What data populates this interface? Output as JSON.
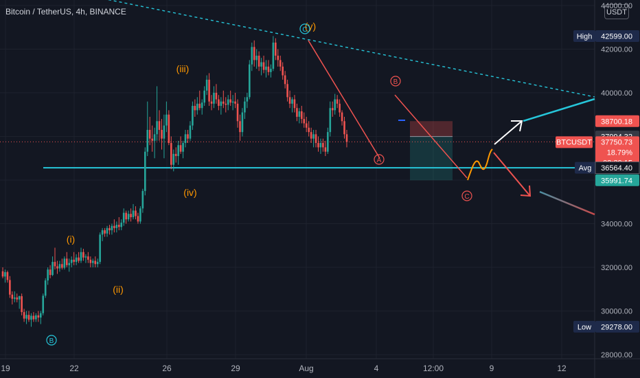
{
  "header": {
    "symbol_title": "Bitcoin / TetherUS, 4h, BINANCE",
    "currency": "USDT"
  },
  "colors": {
    "background": "#131722",
    "grid": "#1e222d",
    "up": "#26a69a",
    "down": "#ef5350",
    "orange": "#ff9800",
    "teal_line": "#26c6da",
    "white": "#ffffff",
    "dark_red": "#b71c1c",
    "axis_text": "#b2b5be",
    "label_navy": "#1e2a4a"
  },
  "chart_data": {
    "type": "candlestick",
    "title": "Bitcoin / TetherUS, 4h, BINANCE",
    "ylim": [
      28000,
      44000
    ],
    "x_ticks": [
      "19",
      "22",
      "26",
      "29",
      "Aug",
      "4",
      "12:00",
      "9",
      "12"
    ],
    "y_ticks": [
      "28000.00",
      "30000.00",
      "32000.00",
      "34000.00",
      "36000.00",
      "38000.00",
      "40000.00",
      "42000.00",
      "44000.00"
    ],
    "grid": true,
    "candles": [
      {
        "o": 31820,
        "h": 32000,
        "l": 31500,
        "c": 31580
      },
      {
        "o": 31580,
        "h": 31900,
        "l": 31300,
        "c": 31780
      },
      {
        "o": 31780,
        "h": 31850,
        "l": 31300,
        "c": 31420
      },
      {
        "o": 31420,
        "h": 31600,
        "l": 30600,
        "c": 30750
      },
      {
        "o": 30750,
        "h": 30900,
        "l": 30300,
        "c": 30560
      },
      {
        "o": 30560,
        "h": 30900,
        "l": 30400,
        "c": 30620
      },
      {
        "o": 30620,
        "h": 30800,
        "l": 30400,
        "c": 30530
      },
      {
        "o": 30530,
        "h": 30700,
        "l": 30100,
        "c": 30680
      },
      {
        "o": 30680,
        "h": 30800,
        "l": 29800,
        "c": 29950
      },
      {
        "o": 29950,
        "h": 30100,
        "l": 29500,
        "c": 29650
      },
      {
        "o": 29650,
        "h": 30000,
        "l": 29400,
        "c": 29820
      },
      {
        "o": 29820,
        "h": 30000,
        "l": 29500,
        "c": 29600
      },
      {
        "o": 29600,
        "h": 29900,
        "l": 29278,
        "c": 29780
      },
      {
        "o": 29780,
        "h": 29950,
        "l": 29500,
        "c": 29620
      },
      {
        "o": 29620,
        "h": 29900,
        "l": 29500,
        "c": 29800
      },
      {
        "o": 29800,
        "h": 30000,
        "l": 29500,
        "c": 29700
      },
      {
        "o": 29700,
        "h": 30000,
        "l": 29400,
        "c": 29900
      },
      {
        "o": 29900,
        "h": 30800,
        "l": 29800,
        "c": 30700
      },
      {
        "o": 30700,
        "h": 31500,
        "l": 30600,
        "c": 31400
      },
      {
        "o": 31400,
        "h": 32000,
        "l": 31200,
        "c": 31900
      },
      {
        "o": 31900,
        "h": 32100,
        "l": 31500,
        "c": 31650
      },
      {
        "o": 31650,
        "h": 32500,
        "l": 31600,
        "c": 32250
      },
      {
        "o": 32250,
        "h": 32900,
        "l": 31900,
        "c": 32050
      },
      {
        "o": 32050,
        "h": 32300,
        "l": 31700,
        "c": 31950
      },
      {
        "o": 31950,
        "h": 32300,
        "l": 31800,
        "c": 32150
      },
      {
        "o": 32150,
        "h": 32400,
        "l": 31900,
        "c": 31980
      },
      {
        "o": 31980,
        "h": 32500,
        "l": 31900,
        "c": 32400
      },
      {
        "o": 32400,
        "h": 32700,
        "l": 32000,
        "c": 32100
      },
      {
        "o": 32100,
        "h": 32400,
        "l": 31800,
        "c": 32200
      },
      {
        "o": 32200,
        "h": 32500,
        "l": 32000,
        "c": 32350
      },
      {
        "o": 32350,
        "h": 32700,
        "l": 32100,
        "c": 32250
      },
      {
        "o": 32250,
        "h": 32600,
        "l": 32100,
        "c": 32450
      },
      {
        "o": 32450,
        "h": 32700,
        "l": 32200,
        "c": 32300
      },
      {
        "o": 32300,
        "h": 32900,
        "l": 32200,
        "c": 32700
      },
      {
        "o": 32700,
        "h": 32850,
        "l": 32300,
        "c": 32450
      },
      {
        "o": 32450,
        "h": 32600,
        "l": 32200,
        "c": 32500
      },
      {
        "o": 32500,
        "h": 32700,
        "l": 32200,
        "c": 32350
      },
      {
        "o": 32350,
        "h": 32500,
        "l": 32000,
        "c": 32200
      },
      {
        "o": 32200,
        "h": 32400,
        "l": 32000,
        "c": 32300
      },
      {
        "o": 32300,
        "h": 32500,
        "l": 32000,
        "c": 32150
      },
      {
        "o": 32150,
        "h": 32400,
        "l": 32000,
        "c": 32250
      },
      {
        "o": 32250,
        "h": 33600,
        "l": 32150,
        "c": 33500
      },
      {
        "o": 33500,
        "h": 33800,
        "l": 33200,
        "c": 33700
      },
      {
        "o": 33700,
        "h": 33800,
        "l": 33400,
        "c": 33550
      },
      {
        "o": 33550,
        "h": 33900,
        "l": 33400,
        "c": 33800
      },
      {
        "o": 33800,
        "h": 33950,
        "l": 33500,
        "c": 33700
      },
      {
        "o": 33700,
        "h": 34000,
        "l": 33500,
        "c": 33900
      },
      {
        "o": 33900,
        "h": 34200,
        "l": 33600,
        "c": 33800
      },
      {
        "o": 33800,
        "h": 34100,
        "l": 33600,
        "c": 33950
      },
      {
        "o": 33950,
        "h": 34300,
        "l": 33700,
        "c": 33850
      },
      {
        "o": 33850,
        "h": 34200,
        "l": 33700,
        "c": 34050
      },
      {
        "o": 34050,
        "h": 34700,
        "l": 33900,
        "c": 34500
      },
      {
        "o": 34500,
        "h": 34600,
        "l": 34000,
        "c": 34200
      },
      {
        "o": 34200,
        "h": 34600,
        "l": 34100,
        "c": 34450
      },
      {
        "o": 34450,
        "h": 34700,
        "l": 34100,
        "c": 34300
      },
      {
        "o": 34300,
        "h": 34900,
        "l": 34200,
        "c": 34600
      },
      {
        "o": 34600,
        "h": 34800,
        "l": 34200,
        "c": 34350
      },
      {
        "o": 34350,
        "h": 34500,
        "l": 34000,
        "c": 34100
      },
      {
        "o": 34100,
        "h": 34800,
        "l": 34000,
        "c": 34700
      },
      {
        "o": 34700,
        "h": 35600,
        "l": 34500,
        "c": 35500
      },
      {
        "o": 35500,
        "h": 37500,
        "l": 35300,
        "c": 37300
      },
      {
        "o": 37300,
        "h": 39600,
        "l": 37100,
        "c": 38300
      },
      {
        "o": 38300,
        "h": 38900,
        "l": 37600,
        "c": 37900
      },
      {
        "o": 37900,
        "h": 38500,
        "l": 37300,
        "c": 37800
      },
      {
        "o": 37800,
        "h": 38400,
        "l": 37000,
        "c": 38100
      },
      {
        "o": 38100,
        "h": 40300,
        "l": 37800,
        "c": 38700
      },
      {
        "o": 38700,
        "h": 39200,
        "l": 37800,
        "c": 38300
      },
      {
        "o": 38300,
        "h": 38800,
        "l": 37400,
        "c": 37900
      },
      {
        "o": 37900,
        "h": 39000,
        "l": 37000,
        "c": 38500
      },
      {
        "o": 38500,
        "h": 39600,
        "l": 38200,
        "c": 39000
      },
      {
        "o": 39000,
        "h": 39200,
        "l": 37600,
        "c": 37700
      },
      {
        "o": 37700,
        "h": 38000,
        "l": 36500,
        "c": 36700
      },
      {
        "o": 36700,
        "h": 37400,
        "l": 36400,
        "c": 37200
      },
      {
        "o": 37200,
        "h": 37500,
        "l": 36800,
        "c": 37100
      },
      {
        "o": 37100,
        "h": 37800,
        "l": 36700,
        "c": 37600
      },
      {
        "o": 37600,
        "h": 38000,
        "l": 37200,
        "c": 37300
      },
      {
        "o": 37300,
        "h": 37800,
        "l": 37000,
        "c": 37700
      },
      {
        "o": 37700,
        "h": 38300,
        "l": 37500,
        "c": 38100
      },
      {
        "o": 38100,
        "h": 38300,
        "l": 37700,
        "c": 37900
      },
      {
        "o": 37900,
        "h": 38700,
        "l": 37800,
        "c": 38500
      },
      {
        "o": 38500,
        "h": 39600,
        "l": 38300,
        "c": 39400
      },
      {
        "o": 39400,
        "h": 39700,
        "l": 38900,
        "c": 39200
      },
      {
        "o": 39200,
        "h": 39800,
        "l": 39000,
        "c": 39500
      },
      {
        "o": 39500,
        "h": 40100,
        "l": 39200,
        "c": 39300
      },
      {
        "o": 39300,
        "h": 39700,
        "l": 39000,
        "c": 39550
      },
      {
        "o": 39550,
        "h": 40300,
        "l": 39400,
        "c": 40100
      },
      {
        "o": 40100,
        "h": 40800,
        "l": 39900,
        "c": 40600
      },
      {
        "o": 40600,
        "h": 40900,
        "l": 39400,
        "c": 39600
      },
      {
        "o": 39600,
        "h": 39900,
        "l": 39200,
        "c": 39500
      },
      {
        "o": 39500,
        "h": 40300,
        "l": 39300,
        "c": 40000
      },
      {
        "o": 40000,
        "h": 40400,
        "l": 39500,
        "c": 39700
      },
      {
        "o": 39700,
        "h": 39900,
        "l": 39200,
        "c": 39400
      },
      {
        "o": 39400,
        "h": 39800,
        "l": 39000,
        "c": 39600
      },
      {
        "o": 39600,
        "h": 40100,
        "l": 39300,
        "c": 39500
      },
      {
        "o": 39500,
        "h": 39800,
        "l": 39100,
        "c": 39450
      },
      {
        "o": 39450,
        "h": 39900,
        "l": 39200,
        "c": 39700
      },
      {
        "o": 39700,
        "h": 40100,
        "l": 39400,
        "c": 39550
      },
      {
        "o": 39550,
        "h": 39900,
        "l": 39200,
        "c": 39600
      },
      {
        "o": 39600,
        "h": 40000,
        "l": 39300,
        "c": 39500
      },
      {
        "o": 39500,
        "h": 39700,
        "l": 38400,
        "c": 38700
      },
      {
        "o": 38700,
        "h": 39000,
        "l": 37800,
        "c": 38200
      },
      {
        "o": 38200,
        "h": 39300,
        "l": 38000,
        "c": 39100
      },
      {
        "o": 39100,
        "h": 39800,
        "l": 38800,
        "c": 39600
      },
      {
        "o": 39600,
        "h": 40000,
        "l": 39300,
        "c": 39800
      },
      {
        "o": 39800,
        "h": 41500,
        "l": 39700,
        "c": 41300
      },
      {
        "o": 41300,
        "h": 42300,
        "l": 41000,
        "c": 42100
      },
      {
        "o": 42100,
        "h": 42400,
        "l": 41200,
        "c": 41500
      },
      {
        "o": 41500,
        "h": 42000,
        "l": 41100,
        "c": 41700
      },
      {
        "o": 41700,
        "h": 41900,
        "l": 41000,
        "c": 41200
      },
      {
        "o": 41200,
        "h": 41600,
        "l": 40800,
        "c": 41400
      },
      {
        "o": 41400,
        "h": 41700,
        "l": 40900,
        "c": 41050
      },
      {
        "o": 41050,
        "h": 41500,
        "l": 40700,
        "c": 41200
      },
      {
        "o": 41200,
        "h": 41500,
        "l": 40800,
        "c": 40950
      },
      {
        "o": 40950,
        "h": 41300,
        "l": 40700,
        "c": 41100
      },
      {
        "o": 41100,
        "h": 42599,
        "l": 41000,
        "c": 42300
      },
      {
        "o": 42300,
        "h": 42500,
        "l": 41500,
        "c": 41700
      },
      {
        "o": 41700,
        "h": 42000,
        "l": 41200,
        "c": 41500
      },
      {
        "o": 41500,
        "h": 41700,
        "l": 41000,
        "c": 41200
      },
      {
        "o": 41200,
        "h": 41400,
        "l": 40600,
        "c": 40800
      },
      {
        "o": 40800,
        "h": 41000,
        "l": 40200,
        "c": 40400
      },
      {
        "o": 40400,
        "h": 40600,
        "l": 39600,
        "c": 39800
      },
      {
        "o": 39800,
        "h": 40100,
        "l": 39300,
        "c": 39500
      },
      {
        "o": 39500,
        "h": 39800,
        "l": 39100,
        "c": 39700
      },
      {
        "o": 39700,
        "h": 39900,
        "l": 39100,
        "c": 39300
      },
      {
        "o": 39300,
        "h": 39500,
        "l": 38700,
        "c": 38900
      },
      {
        "o": 38900,
        "h": 39300,
        "l": 38600,
        "c": 39150
      },
      {
        "o": 39150,
        "h": 39400,
        "l": 38600,
        "c": 38800
      },
      {
        "o": 38800,
        "h": 39100,
        "l": 38400,
        "c": 38600
      },
      {
        "o": 38600,
        "h": 38900,
        "l": 38200,
        "c": 38400
      },
      {
        "o": 38400,
        "h": 38700,
        "l": 38000,
        "c": 38200
      },
      {
        "o": 38200,
        "h": 38400,
        "l": 37700,
        "c": 37900
      },
      {
        "o": 37900,
        "h": 38300,
        "l": 37500,
        "c": 38100
      },
      {
        "o": 38100,
        "h": 38300,
        "l": 37500,
        "c": 37700
      },
      {
        "o": 37700,
        "h": 38000,
        "l": 37300,
        "c": 37500
      },
      {
        "o": 37500,
        "h": 37900,
        "l": 37200,
        "c": 37700
      },
      {
        "o": 37700,
        "h": 37900,
        "l": 37300,
        "c": 37500
      },
      {
        "o": 37500,
        "h": 37800,
        "l": 37100,
        "c": 37300
      },
      {
        "o": 37300,
        "h": 38400,
        "l": 37200,
        "c": 38200
      },
      {
        "o": 38200,
        "h": 39600,
        "l": 38000,
        "c": 39300
      },
      {
        "o": 39300,
        "h": 39600,
        "l": 38900,
        "c": 39200
      },
      {
        "o": 39200,
        "h": 39950,
        "l": 39000,
        "c": 39700
      },
      {
        "o": 39700,
        "h": 39900,
        "l": 39300,
        "c": 39500
      },
      {
        "o": 39500,
        "h": 39700,
        "l": 38900,
        "c": 39100
      },
      {
        "o": 39100,
        "h": 39200,
        "l": 38500,
        "c": 38700
      },
      {
        "o": 38700,
        "h": 38900,
        "l": 37900,
        "c": 38100
      },
      {
        "o": 38100,
        "h": 38300,
        "l": 37500,
        "c": 37750
      }
    ],
    "price_labels": [
      {
        "id": "high",
        "label": "High",
        "value": "42599.00"
      },
      {
        "id": "target",
        "value": "38700.18"
      },
      {
        "id": "position",
        "value": "37994.32"
      },
      {
        "id": "symbol",
        "label": "BTCUSDT",
        "value": "37750.73",
        "change": "18.79%",
        "countdown": "02:39:15"
      },
      {
        "id": "avg",
        "label": "Avg",
        "value": "36564.40"
      },
      {
        "id": "stop",
        "value": "35991.74"
      },
      {
        "id": "low",
        "label": "Low",
        "value": "29278.00"
      }
    ],
    "avg_line": 36564.4,
    "current_price": 37750.73,
    "wave_labels": [
      {
        "text": "(i)",
        "style": "orange"
      },
      {
        "text": "(ii)",
        "style": "orange"
      },
      {
        "text": "(iii)",
        "style": "orange"
      },
      {
        "text": "(iv)",
        "style": "orange"
      },
      {
        "text": "(y)",
        "style": "orange"
      },
      {
        "text": "B",
        "style": "teal-circle"
      },
      {
        "text": "C",
        "style": "teal-circle"
      },
      {
        "text": "A",
        "style": "red-circle"
      },
      {
        "text": "B",
        "style": "red-circle"
      },
      {
        "text": "C",
        "style": "red-circle"
      }
    ]
  }
}
